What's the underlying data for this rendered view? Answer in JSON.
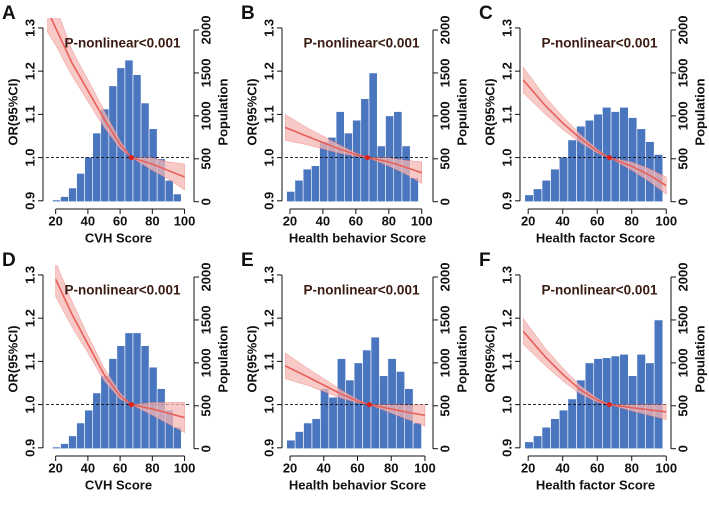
{
  "chart_data": [
    {
      "type": "combo",
      "panel": "A",
      "annotation": "P-nonlinear<0.001",
      "xlabel": "CVH Score",
      "ylabel": "OR(95%CI)",
      "y2label": "Population",
      "xlim": [
        14,
        104
      ],
      "xticks": [
        20,
        40,
        60,
        80,
        100
      ],
      "ylim": [
        0.888,
        1.323
      ],
      "yticks": [
        0.9,
        {
          "value": 1,
          "label": "1.0"
        },
        1.1,
        1.2,
        1.3
      ],
      "y2lim": [
        -50,
        2140
      ],
      "y2ticks": [
        0,
        500,
        1000,
        1500,
        2000
      ],
      "histogram": {
        "color": "#4a76c0",
        "bins": [
          18,
          23,
          28,
          33,
          38,
          43,
          48,
          53,
          58,
          63,
          68,
          73,
          78,
          83,
          88,
          93,
          98
        ],
        "values": [
          20,
          60,
          160,
          330,
          520,
          800,
          1080,
          1350,
          1560,
          1650,
          1480,
          1150,
          850,
          500,
          250,
          90
        ]
      },
      "curve": {
        "color": "#e8605a",
        "band_color": "#f4b7b4",
        "x": [
          15,
          20,
          30,
          40,
          50,
          60,
          67,
          80,
          90,
          100
        ],
        "values": [
          1.34,
          1.3,
          1.22,
          1.155,
          1.09,
          1.03,
          1,
          0.985,
          0.97,
          0.955
        ],
        "lower": [
          1.29,
          1.26,
          1.19,
          1.13,
          1.07,
          1.02,
          1,
          0.97,
          0.95,
          0.925
        ],
        "upper": [
          1.39,
          1.35,
          1.25,
          1.18,
          1.11,
          1.04,
          1,
          1.0,
          0.99,
          0.985
        ]
      },
      "reference_line": 1,
      "reference_point": {
        "x": 67,
        "y": 1
      }
    },
    {
      "type": "combo",
      "panel": "B",
      "annotation": "P-nonlinear<0.001",
      "xlabel": "Health behavior Score",
      "ylabel": "OR(95%CI)",
      "y2label": "Population",
      "xlim": [
        17,
        105
      ],
      "xticks": [
        20,
        40,
        60,
        80,
        100
      ],
      "ylim": [
        0.888,
        1.323
      ],
      "yticks": [
        0.9,
        {
          "value": 1,
          "label": "1.0"
        },
        1.1,
        1.2,
        1.3
      ],
      "y2lim": [
        -50,
        2140
      ],
      "y2ticks": [
        0,
        500,
        1000,
        1500,
        2000
      ],
      "histogram": {
        "color": "#4a76c0",
        "bins": [
          18,
          23,
          28,
          33,
          38,
          43,
          48,
          53,
          58,
          63,
          68,
          73,
          78,
          83,
          88,
          93,
          98
        ],
        "values": [
          120,
          250,
          380,
          420,
          700,
          750,
          1050,
          800,
          950,
          1200,
          1500,
          650,
          1000,
          1050,
          650,
          280
        ]
      },
      "curve": {
        "color": "#e8605a",
        "band_color": "#f4b7b4",
        "x": [
          17,
          30,
          40,
          50,
          60,
          67,
          80,
          90,
          100
        ],
        "values": [
          1.07,
          1.05,
          1.035,
          1.02,
          1.007,
          1,
          0.99,
          0.978,
          0.965
        ],
        "lower": [
          1.04,
          1.03,
          1.02,
          1.01,
          1.003,
          1,
          0.98,
          0.962,
          0.94
        ],
        "upper": [
          1.1,
          1.07,
          1.05,
          1.03,
          1.011,
          1,
          1.0,
          0.994,
          0.99
        ]
      },
      "reference_line": 1,
      "reference_point": {
        "x": 67,
        "y": 1
      }
    },
    {
      "type": "combo",
      "panel": "C",
      "annotation": "P-nonlinear<0.001",
      "xlabel": "Health factor Score",
      "ylabel": "OR(95%CI)",
      "y2label": "Population",
      "xlim": [
        17,
        101
      ],
      "xticks": [
        20,
        40,
        60,
        80,
        100
      ],
      "ylim": [
        0.888,
        1.323
      ],
      "yticks": [
        0.9,
        {
          "value": 1,
          "label": "1.0"
        },
        1.1,
        1.2,
        1.3
      ],
      "y2lim": [
        -50,
        2140
      ],
      "y2ticks": [
        0,
        500,
        1000,
        1500,
        2000
      ],
      "histogram": {
        "color": "#4a76c0",
        "bins": [
          18,
          23,
          28,
          33,
          38,
          43,
          48,
          53,
          58,
          63,
          68,
          73,
          78,
          83,
          88,
          93,
          98
        ],
        "values": [
          80,
          150,
          250,
          380,
          520,
          720,
          880,
          950,
          1020,
          1100,
          1050,
          1100,
          980,
          850,
          700,
          550
        ]
      },
      "curve": {
        "color": "#e8605a",
        "band_color": "#f4b7b4",
        "x": [
          17,
          30,
          40,
          50,
          60,
          67,
          80,
          90,
          100
        ],
        "values": [
          1.18,
          1.12,
          1.08,
          1.045,
          1.015,
          1,
          0.98,
          0.96,
          0.935
        ],
        "lower": [
          1.15,
          1.1,
          1.065,
          1.035,
          1.01,
          1,
          0.97,
          0.945,
          0.915
        ],
        "upper": [
          1.21,
          1.14,
          1.095,
          1.055,
          1.02,
          1,
          0.99,
          0.975,
          0.955
        ]
      },
      "reference_line": 1,
      "reference_point": {
        "x": 67,
        "y": 1
      }
    },
    {
      "type": "combo",
      "panel": "D",
      "annotation": "P-nonlinear<0.001",
      "xlabel": "CVH Score",
      "ylabel": "OR(95%CI)",
      "y2label": "Population",
      "xlim": [
        14,
        104
      ],
      "xticks": [
        20,
        40,
        60,
        80,
        100
      ],
      "ylim": [
        0.888,
        1.323
      ],
      "yticks": [
        0.9,
        {
          "value": 1,
          "label": "1.0"
        },
        1.1,
        1.2,
        1.3
      ],
      "y2lim": [
        -50,
        2140
      ],
      "y2ticks": [
        0,
        500,
        1000,
        1500,
        2000
      ],
      "histogram": {
        "color": "#4a76c0",
        "bins": [
          18,
          23,
          28,
          33,
          38,
          43,
          48,
          53,
          58,
          63,
          68,
          73,
          78,
          83,
          88,
          93,
          98
        ],
        "values": [
          20,
          60,
          150,
          300,
          450,
          650,
          850,
          1050,
          1200,
          1350,
          1350,
          1200,
          950,
          700,
          450,
          250
        ]
      },
      "curve": {
        "color": "#e8605a",
        "band_color": "#f4b7b4",
        "x": [
          20,
          30,
          40,
          50,
          60,
          67,
          80,
          90,
          100
        ],
        "values": [
          1.29,
          1.21,
          1.14,
          1.07,
          1.02,
          1,
          0.99,
          0.98,
          0.97
        ],
        "lower": [
          1.25,
          1.18,
          1.12,
          1.055,
          1.012,
          1,
          0.975,
          0.955,
          0.935
        ],
        "upper": [
          1.33,
          1.24,
          1.16,
          1.085,
          1.028,
          1,
          1.005,
          1.005,
          1.005
        ]
      },
      "reference_line": 1,
      "reference_point": {
        "x": 67,
        "y": 1
      }
    },
    {
      "type": "combo",
      "panel": "E",
      "annotation": "P-nonlinear<0.001",
      "xlabel": "Health behavior Score",
      "ylabel": "OR(95%CI)",
      "y2label": "Population",
      "xlim": [
        17,
        103
      ],
      "xticks": [
        20,
        40,
        60,
        80,
        100
      ],
      "ylim": [
        0.888,
        1.323
      ],
      "yticks": [
        0.9,
        {
          "value": 1,
          "label": "1.0"
        },
        1.1,
        1.2,
        1.3
      ],
      "y2lim": [
        -50,
        2140
      ],
      "y2ticks": [
        0,
        500,
        1000,
        1500,
        2000
      ],
      "histogram": {
        "color": "#4a76c0",
        "bins": [
          18,
          23,
          28,
          33,
          38,
          43,
          48,
          53,
          58,
          63,
          68,
          73,
          78,
          83,
          88,
          93,
          98
        ],
        "values": [
          100,
          200,
          300,
          350,
          700,
          600,
          1050,
          800,
          1000,
          1150,
          1300,
          850,
          1050,
          900,
          700,
          300
        ]
      },
      "curve": {
        "color": "#e8605a",
        "band_color": "#f4b7b4",
        "x": [
          17,
          30,
          40,
          50,
          60,
          67,
          80,
          90,
          100
        ],
        "values": [
          1.09,
          1.065,
          1.045,
          1.025,
          1.008,
          1,
          0.99,
          0.982,
          0.975
        ],
        "lower": [
          1.06,
          1.045,
          1.03,
          1.015,
          1.004,
          1,
          0.98,
          0.965,
          0.95
        ],
        "upper": [
          1.12,
          1.085,
          1.06,
          1.035,
          1.012,
          1,
          1.0,
          0.999,
          1.0
        ]
      },
      "reference_line": 1,
      "reference_point": {
        "x": 67,
        "y": 1
      }
    },
    {
      "type": "combo",
      "panel": "F",
      "annotation": "P-nonlinear<0.001",
      "xlabel": "Health factor Score",
      "ylabel": "OR(95%CI)",
      "y2label": "Population",
      "xlim": [
        17,
        101
      ],
      "xticks": [
        20,
        40,
        60,
        80,
        100
      ],
      "ylim": [
        0.888,
        1.323
      ],
      "yticks": [
        0.9,
        {
          "value": 1,
          "label": "1.0"
        },
        1.1,
        1.2,
        1.3
      ],
      "y2lim": [
        -50,
        2140
      ],
      "y2ticks": [
        0,
        500,
        1000,
        1500,
        2000
      ],
      "histogram": {
        "color": "#4a76c0",
        "bins": [
          18,
          23,
          28,
          33,
          38,
          43,
          48,
          53,
          58,
          63,
          68,
          73,
          78,
          83,
          88,
          93,
          98
        ],
        "values": [
          80,
          150,
          250,
          350,
          450,
          580,
          800,
          1000,
          1050,
          1060,
          1080,
          1100,
          850,
          1100,
          1000,
          1500
        ]
      },
      "curve": {
        "color": "#e8605a",
        "band_color": "#f4b7b4",
        "x": [
          17,
          30,
          40,
          50,
          60,
          67,
          80,
          90,
          100
        ],
        "values": [
          1.17,
          1.11,
          1.07,
          1.035,
          1.01,
          1,
          0.993,
          0.988,
          0.983
        ],
        "lower": [
          1.14,
          1.09,
          1.055,
          1.025,
          1.005,
          1,
          0.985,
          0.975,
          0.965
        ],
        "upper": [
          1.2,
          1.13,
          1.085,
          1.045,
          1.015,
          1,
          1.0,
          1.0,
          1.0
        ]
      },
      "reference_line": 1,
      "reference_point": {
        "x": 67,
        "y": 1
      }
    }
  ]
}
